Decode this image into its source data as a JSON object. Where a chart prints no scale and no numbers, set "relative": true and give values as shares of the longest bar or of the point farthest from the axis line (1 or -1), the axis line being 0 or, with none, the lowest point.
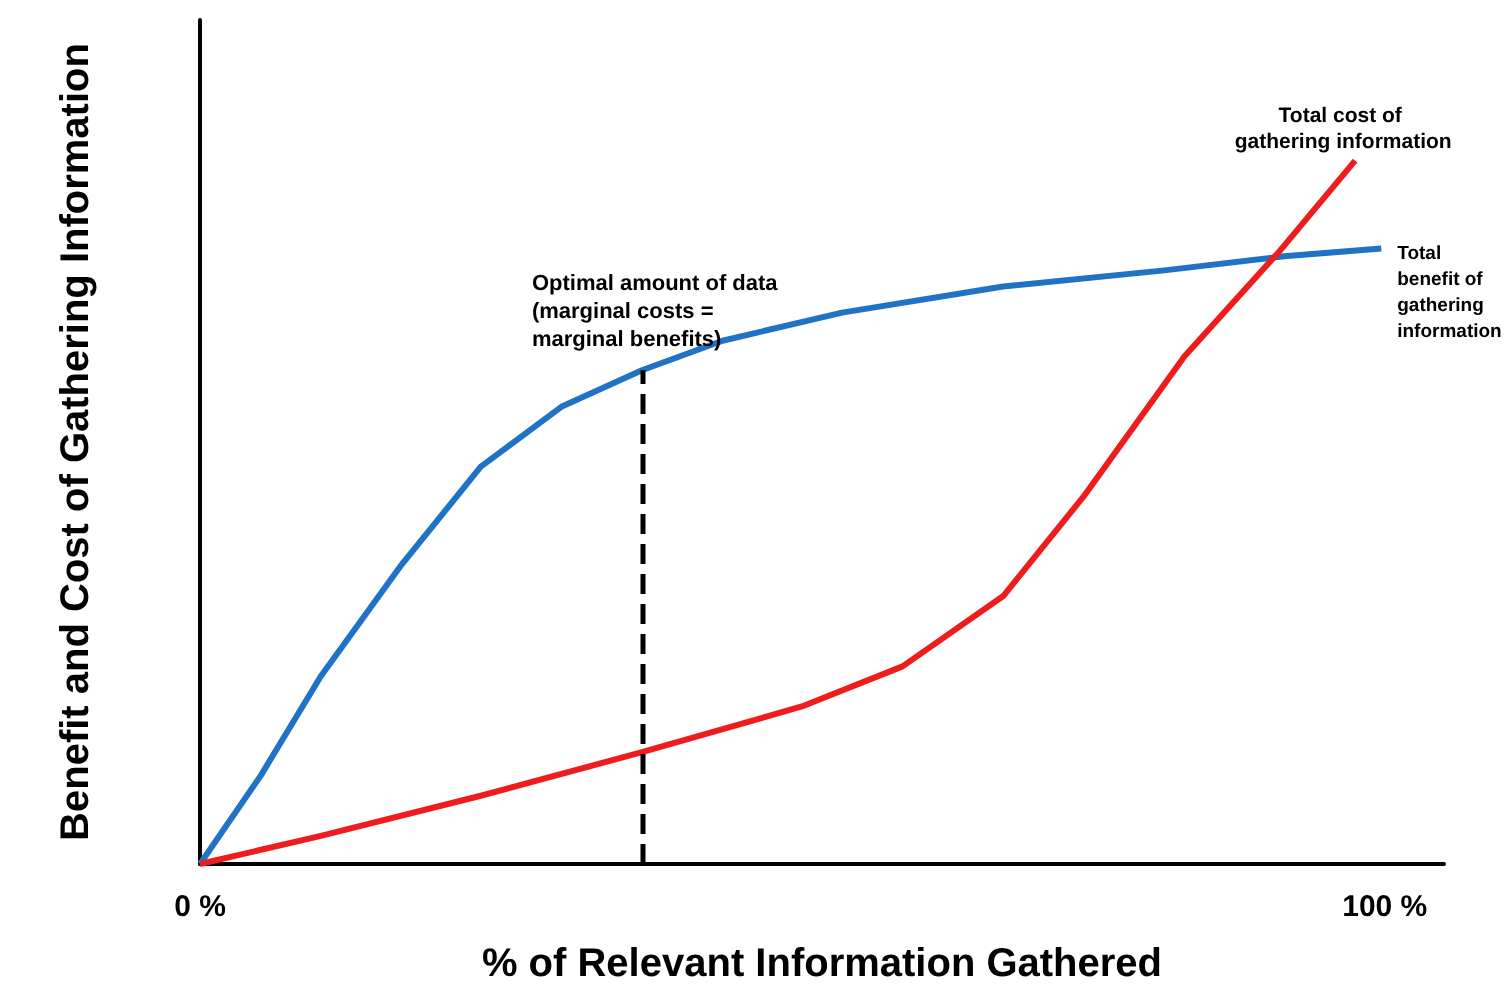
{
  "chart_data": {
    "type": "line",
    "xlabel": "% of Relevant Information Gathered",
    "ylabel": "Benefit and Cost of Gathering Information",
    "relative": true,
    "marker": "none",
    "xlim": [
      0,
      105
    ],
    "xticks": [
      {
        "value": 0,
        "label": "0 %"
      },
      {
        "value": 100,
        "label": "100 %"
      }
    ],
    "series": [
      {
        "name": "Total benefit of gathering information",
        "color": "#1f72c4",
        "x": [
          0,
          5.1,
          10.2,
          16.9,
          23.7,
          30.5,
          37.3,
          44.1,
          54.2,
          67.8,
          81.4,
          91.5,
          99.7
        ],
        "values": [
          0,
          0.125,
          0.267,
          0.423,
          0.565,
          0.65,
          0.702,
          0.744,
          0.784,
          0.821,
          0.844,
          0.864,
          0.875
        ]
      },
      {
        "name": "Total cost of gathering information",
        "color": "#ee1c1c",
        "x": [
          0,
          10.2,
          23.7,
          37.3,
          50.8,
          59.3,
          67.8,
          74.6,
          83.1,
          91.0,
          97.5
        ],
        "values": [
          0,
          0.04,
          0.097,
          0.159,
          0.224,
          0.281,
          0.381,
          0.523,
          0.722,
          0.869,
          1
        ]
      }
    ],
    "ref_lines": [
      {
        "axis": "x",
        "value": 37.3,
        "label": "Optimal amount of data (marginal costs = marginal benefits)",
        "color": "#000000",
        "line_style": "dashed"
      }
    ]
  }
}
